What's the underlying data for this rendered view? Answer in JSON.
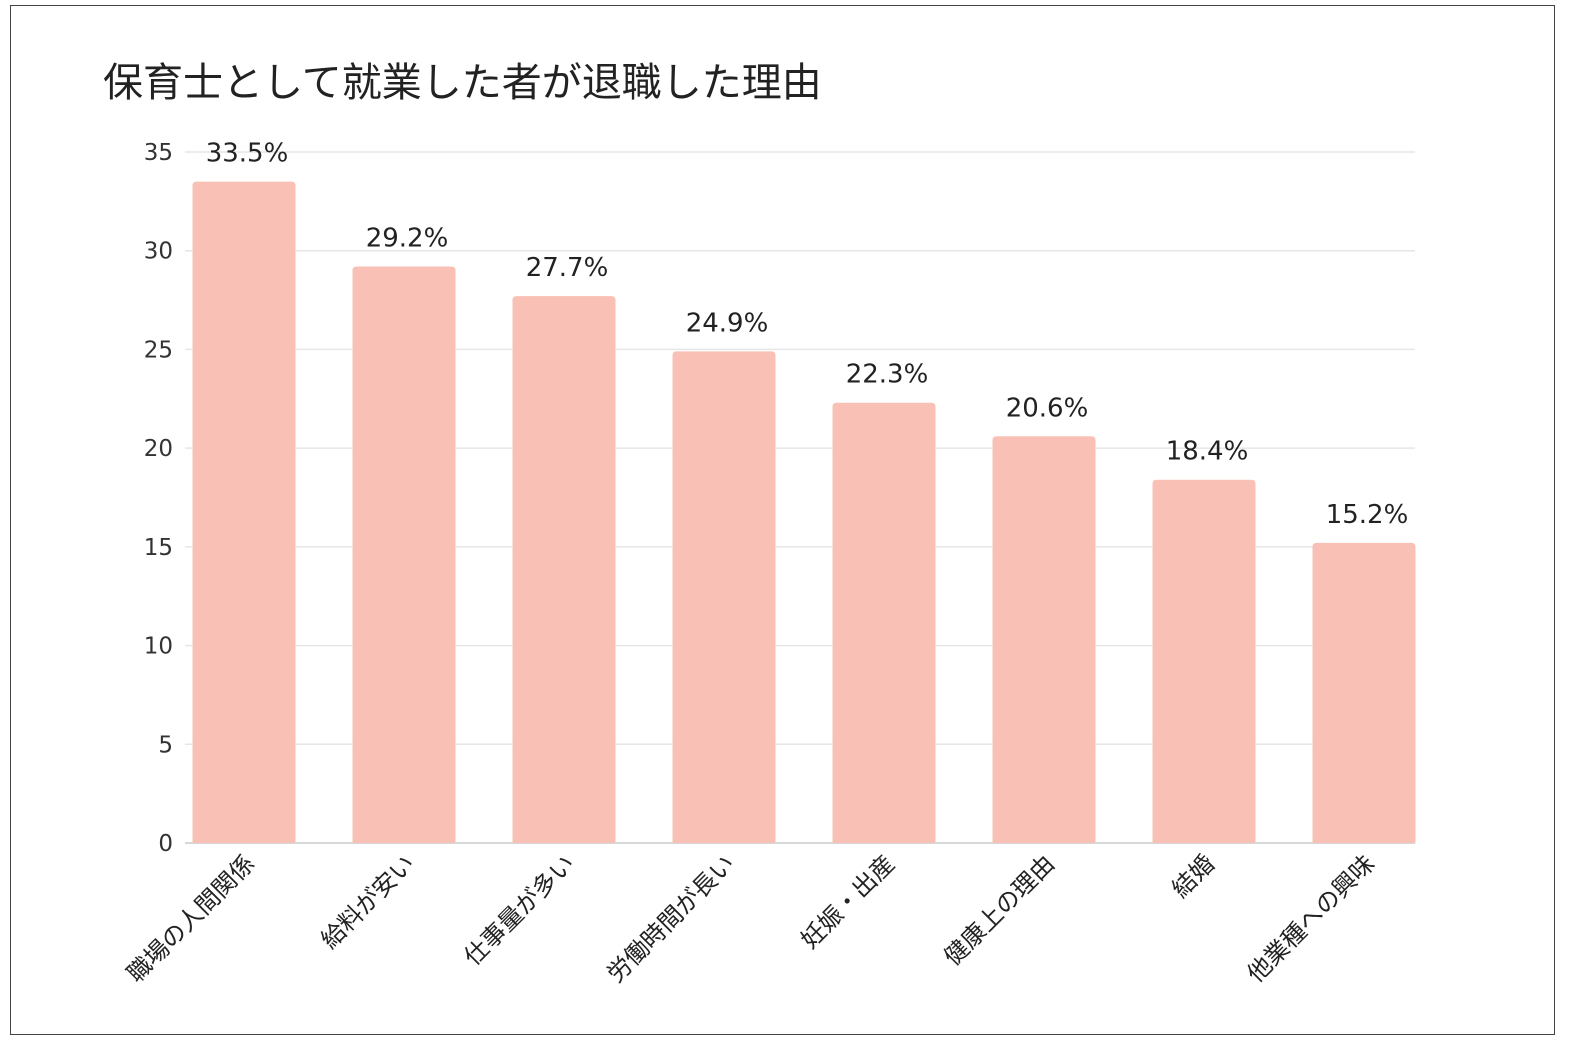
{
  "chart_data": {
    "type": "bar",
    "title": "保育士として就業した者が退職した理由",
    "xlabel": "",
    "ylabel": "",
    "ylim": [
      0,
      35
    ],
    "yticks": [
      0,
      5,
      10,
      15,
      20,
      25,
      30,
      35
    ],
    "grid": true,
    "categories": [
      "職場の人間関係",
      "給料が安い",
      "仕事量が多い",
      "労働時間が長い",
      "妊娠・出産",
      "健康上の理由",
      "結婚",
      "他業種への興味"
    ],
    "values": [
      33.5,
      29.2,
      27.7,
      24.9,
      22.3,
      20.6,
      18.4,
      15.2
    ],
    "data_labels": [
      "33.5%",
      "29.2%",
      "27.7%",
      "24.9%",
      "22.3%",
      "20.6%",
      "18.4%",
      "15.2%"
    ],
    "bar_color": "#F9C1B5",
    "grid_color": "#E6E6E6"
  }
}
